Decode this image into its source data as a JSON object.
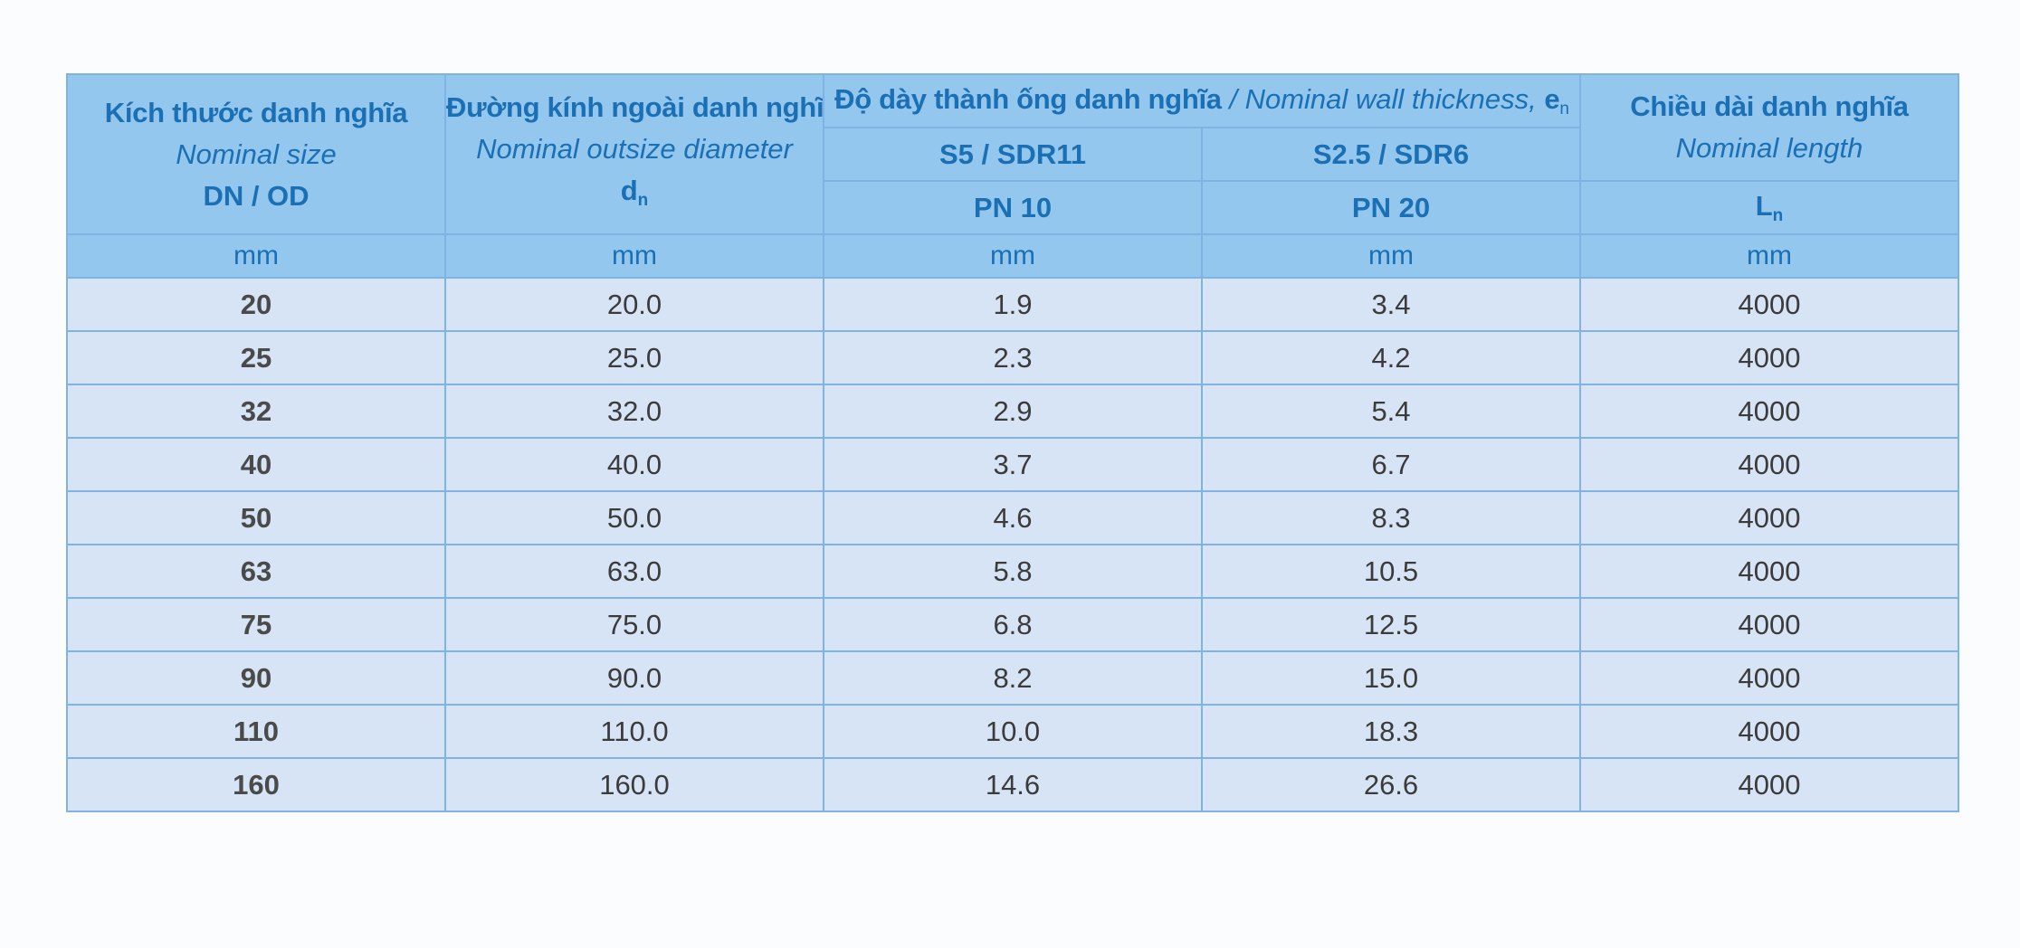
{
  "table": {
    "header": {
      "nominal_size": {
        "vi": "Kích thước danh nghĩa",
        "en": "Nominal size",
        "code": "DN / OD"
      },
      "outside_diameter": {
        "vi": "Đường kính ngoài danh nghĩa",
        "en": "Nominal outsize diameter",
        "symbol": "d",
        "symbol_sub": "n"
      },
      "wall_thickness": {
        "vi": "Độ dày thành ống danh nghĩa",
        "separator": " / ",
        "en": "Nominal wall thickness, ",
        "symbol": "e",
        "symbol_sub": "n"
      },
      "series": [
        {
          "label": "S5 / SDR11",
          "pressure": "PN 10"
        },
        {
          "label": "S2.5 / SDR6",
          "pressure": "PN 20"
        }
      ],
      "nominal_length": {
        "vi": "Chiều dài danh nghĩa",
        "en": "Nominal length",
        "symbol": "L",
        "symbol_sub": "n"
      },
      "units": [
        "mm",
        "mm",
        "mm",
        "mm",
        "mm"
      ]
    },
    "rows": [
      {
        "dn": "20",
        "od": "20.0",
        "s5": "1.9",
        "s25": "3.4",
        "len": "4000"
      },
      {
        "dn": "25",
        "od": "25.0",
        "s5": "2.3",
        "s25": "4.2",
        "len": "4000"
      },
      {
        "dn": "32",
        "od": "32.0",
        "s5": "2.9",
        "s25": "5.4",
        "len": "4000"
      },
      {
        "dn": "40",
        "od": "40.0",
        "s5": "3.7",
        "s25": "6.7",
        "len": "4000"
      },
      {
        "dn": "50",
        "od": "50.0",
        "s5": "4.6",
        "s25": "8.3",
        "len": "4000"
      },
      {
        "dn": "63",
        "od": "63.0",
        "s5": "5.8",
        "s25": "10.5",
        "len": "4000"
      },
      {
        "dn": "75",
        "od": "75.0",
        "s5": "6.8",
        "s25": "12.5",
        "len": "4000"
      },
      {
        "dn": "90",
        "od": "90.0",
        "s5": "8.2",
        "s25": "15.0",
        "len": "4000"
      },
      {
        "dn": "110",
        "od": "110.0",
        "s5": "10.0",
        "s25": "18.3",
        "len": "4000"
      },
      {
        "dn": "160",
        "od": "160.0",
        "s5": "14.6",
        "s25": "26.6",
        "len": "4000"
      }
    ],
    "colors": {
      "header_bg": "#93c7ee",
      "header_text": "#1b6fb4",
      "body_bg": "#d6e4f5",
      "border": "#7eb3e3"
    }
  }
}
